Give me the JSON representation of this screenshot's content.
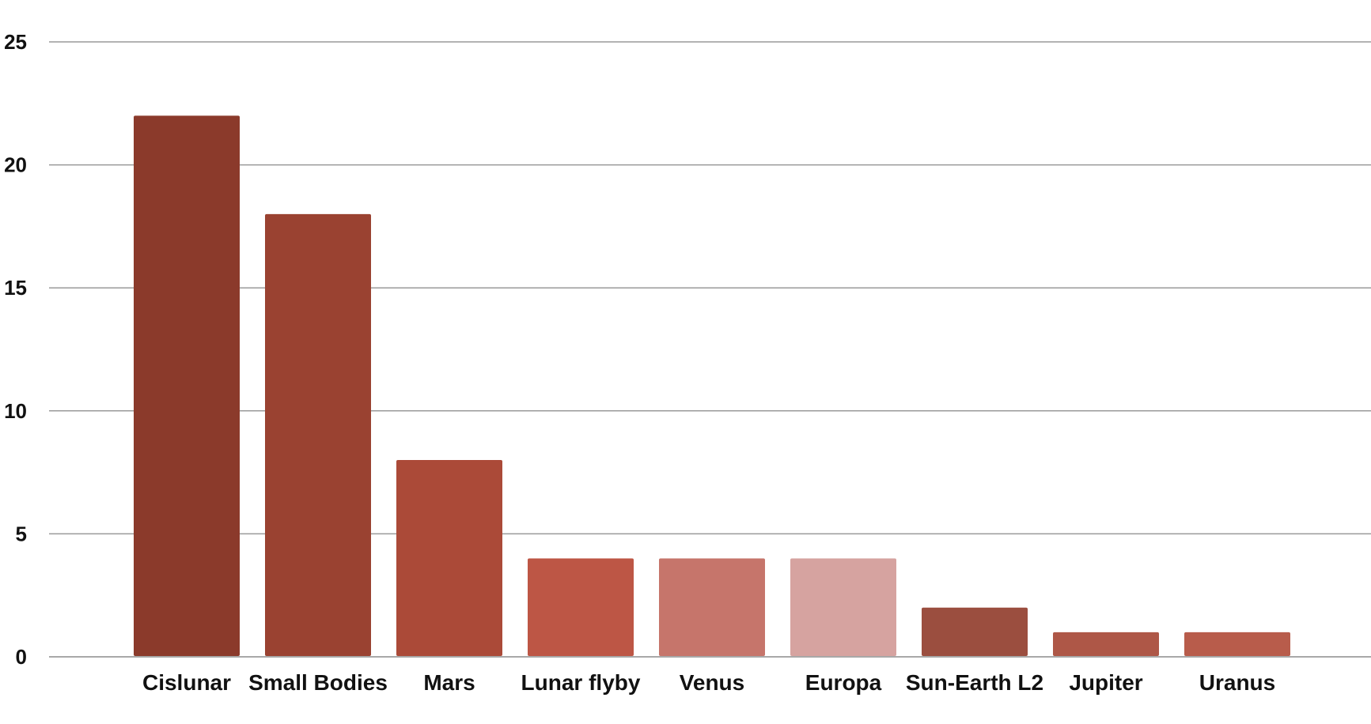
{
  "chart_data": {
    "type": "bar",
    "title": "",
    "xlabel": "",
    "ylabel": "",
    "ylim": [
      0,
      25
    ],
    "yticks": [
      0,
      5,
      10,
      15,
      20,
      25
    ],
    "grid": true,
    "legend": "none",
    "categories": [
      "Cislunar",
      "Small Bodies",
      "Mars",
      "Lunar flyby",
      "Venus",
      "Europa",
      "Sun-Earth L2",
      "Jupiter",
      "Uranus"
    ],
    "values": [
      22,
      18,
      8,
      4,
      4,
      4,
      2,
      1,
      1
    ],
    "colors": [
      "#8b3a2b",
      "#9a4231",
      "#ab4a38",
      "#bd5645",
      "#c6756b",
      "#d6a3a0",
      "#9b4e3f",
      "#ae5747",
      "#b85c4b"
    ]
  }
}
